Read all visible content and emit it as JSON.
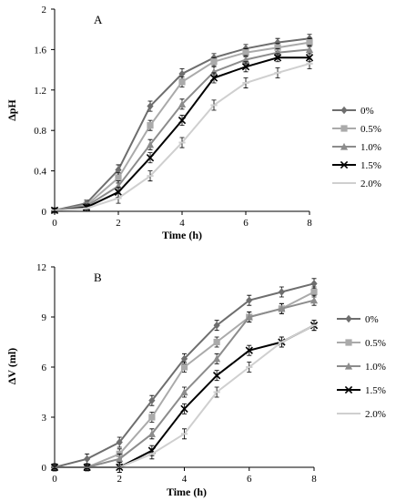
{
  "chart_data": [
    {
      "type": "line",
      "panel_label": "A",
      "xlabel": "Time (h)",
      "ylabel": "ΔpH",
      "xlim": [
        0,
        8
      ],
      "ylim": [
        0,
        2
      ],
      "x_ticks": [
        "0",
        "2",
        "4",
        "6",
        "8"
      ],
      "y_ticks": [
        "0",
        "0.4",
        "0.8",
        "1.2",
        "1.6",
        "2"
      ],
      "grid": false,
      "legend_position": "right",
      "x": [
        0,
        1,
        2,
        3,
        4,
        5,
        6,
        7,
        8
      ],
      "series": [
        {
          "name": "0%",
          "color": "#6e6e6e",
          "marker": "diamond",
          "values": [
            0.01,
            0.08,
            0.41,
            1.04,
            1.36,
            1.52,
            1.61,
            1.67,
            1.71
          ],
          "errors": [
            0.02,
            0.03,
            0.05,
            0.05,
            0.05,
            0.04,
            0.04,
            0.04,
            0.04
          ]
        },
        {
          "name": "0.5%",
          "color": "#aaaaaa",
          "marker": "square",
          "values": [
            0.01,
            0.06,
            0.33,
            0.85,
            1.28,
            1.48,
            1.57,
            1.62,
            1.67
          ],
          "errors": [
            0.02,
            0.03,
            0.05,
            0.05,
            0.05,
            0.04,
            0.04,
            0.04,
            0.04
          ]
        },
        {
          "name": "1.0%",
          "color": "#8c8c8c",
          "marker": "triangle",
          "values": [
            0.01,
            0.05,
            0.25,
            0.66,
            1.06,
            1.38,
            1.5,
            1.57,
            1.6
          ],
          "errors": [
            0.02,
            0.03,
            0.05,
            0.05,
            0.05,
            0.05,
            0.04,
            0.04,
            0.04
          ]
        },
        {
          "name": "1.5%",
          "color": "#000000",
          "marker": "x",
          "values": [
            0.01,
            0.04,
            0.19,
            0.53,
            0.9,
            1.32,
            1.43,
            1.52,
            1.52
          ],
          "errors": [
            0.02,
            0.03,
            0.05,
            0.05,
            0.05,
            0.05,
            0.05,
            0.04,
            0.04
          ]
        },
        {
          "name": "2.0%",
          "color": "#cfcfcf",
          "marker": "dash",
          "values": [
            0.01,
            0.03,
            0.13,
            0.35,
            0.68,
            1.05,
            1.27,
            1.37,
            1.46
          ],
          "errors": [
            0.02,
            0.03,
            0.05,
            0.05,
            0.05,
            0.05,
            0.05,
            0.05,
            0.05
          ]
        }
      ]
    },
    {
      "type": "line",
      "panel_label": "B",
      "xlabel": "Time (h)",
      "ylabel": "ΔV (ml)",
      "xlim": [
        0,
        8
      ],
      "ylim": [
        0,
        12
      ],
      "x_ticks": [
        "0",
        "2",
        "4",
        "6",
        "8"
      ],
      "y_ticks": [
        "0",
        "3",
        "6",
        "9",
        "12"
      ],
      "grid": false,
      "legend_position": "right",
      "x": [
        0,
        1,
        2,
        3,
        4,
        5,
        6,
        7,
        8
      ],
      "series": [
        {
          "name": "0%",
          "color": "#6e6e6e",
          "marker": "diamond",
          "values": [
            0.0,
            0.5,
            1.5,
            4.0,
            6.5,
            8.5,
            10.0,
            10.5,
            11.0
          ],
          "errors": [
            0.2,
            0.3,
            0.3,
            0.3,
            0.3,
            0.3,
            0.3,
            0.3,
            0.3
          ]
        },
        {
          "name": "0.5%",
          "color": "#aaaaaa",
          "marker": "square",
          "values": [
            0.0,
            0.0,
            0.8,
            3.0,
            6.0,
            7.5,
            9.0,
            9.5,
            10.5
          ],
          "errors": [
            0.2,
            0.2,
            0.3,
            0.3,
            0.3,
            0.3,
            0.3,
            0.3,
            0.3
          ]
        },
        {
          "name": "1.0%",
          "color": "#8c8c8c",
          "marker": "triangle",
          "values": [
            0.0,
            0.0,
            0.5,
            2.0,
            4.5,
            6.5,
            9.0,
            9.5,
            10.0
          ],
          "errors": [
            0.2,
            0.2,
            0.3,
            0.3,
            0.3,
            0.3,
            0.3,
            0.3,
            0.3
          ]
        },
        {
          "name": "1.5%",
          "color": "#000000",
          "marker": "x",
          "values": [
            0.0,
            0.0,
            0.0,
            1.0,
            3.5,
            5.5,
            7.0,
            7.5,
            8.5
          ],
          "errors": [
            0.2,
            0.2,
            0.3,
            0.3,
            0.3,
            0.3,
            0.3,
            0.3,
            0.3
          ]
        },
        {
          "name": "2.0%",
          "color": "#cfcfcf",
          "marker": "dash",
          "values": [
            0.0,
            0.0,
            0.0,
            0.8,
            2.0,
            4.5,
            6.0,
            7.5,
            8.5
          ],
          "errors": [
            0.2,
            0.2,
            0.3,
            0.3,
            0.3,
            0.3,
            0.3,
            0.3,
            0.3
          ]
        }
      ]
    }
  ]
}
